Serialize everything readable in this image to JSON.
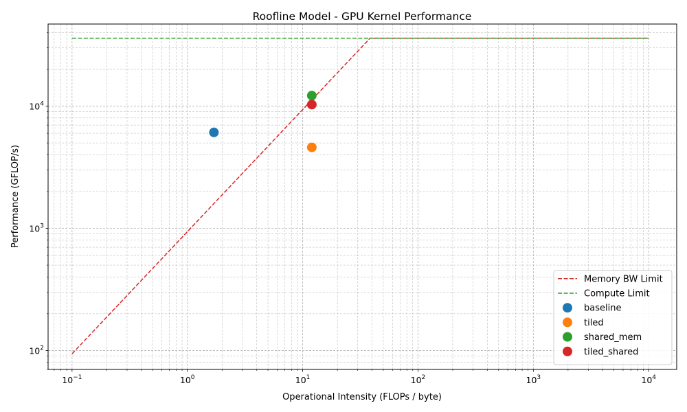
{
  "chart_data": {
    "type": "scatter",
    "title": "Roofline Model - GPU Kernel Performance",
    "xlabel": "Operational Intensity (FLOPs / byte)",
    "ylabel": "Performance (GFLOP/s)",
    "x_scale": "log",
    "y_scale": "log",
    "xlim": [
      0.062,
      17500
    ],
    "ylim": [
      70,
      47000
    ],
    "x_ticks": [
      {
        "value": 0.1,
        "base": "10",
        "exp": "−1"
      },
      {
        "value": 1,
        "base": "10",
        "exp": "0"
      },
      {
        "value": 10,
        "base": "10",
        "exp": "1"
      },
      {
        "value": 100,
        "base": "10",
        "exp": "2"
      },
      {
        "value": 1000,
        "base": "10",
        "exp": "3"
      },
      {
        "value": 10000,
        "base": "10",
        "exp": "4"
      }
    ],
    "y_ticks": [
      {
        "value": 100,
        "base": "10",
        "exp": "2"
      },
      {
        "value": 1000,
        "base": "10",
        "exp": "3"
      },
      {
        "value": 10000,
        "base": "10",
        "exp": "4"
      }
    ],
    "grid": true,
    "legend_position": "bottom-right",
    "lines": [
      {
        "name": "Memory BW Limit",
        "style": "dashed",
        "color": "#d62728",
        "x": [
          0.1,
          38.4,
          10000
        ],
        "y": [
          94,
          36000,
          36000
        ]
      },
      {
        "name": "Compute Limit",
        "style": "dashed",
        "color": "#2ca02c",
        "x": [
          0.1,
          10000
        ],
        "y": [
          36000,
          36000
        ]
      }
    ],
    "series": [
      {
        "name": "baseline",
        "color": "#1f77b4",
        "x": [
          1.7
        ],
        "y": [
          6100
        ]
      },
      {
        "name": "tiled",
        "color": "#ff7f0e",
        "x": [
          12
        ],
        "y": [
          4600
        ]
      },
      {
        "name": "shared_mem",
        "color": "#2ca02c",
        "x": [
          12
        ],
        "y": [
          12200
        ]
      },
      {
        "name": "tiled_shared",
        "color": "#d62728",
        "x": [
          12
        ],
        "y": [
          10300
        ]
      }
    ]
  }
}
